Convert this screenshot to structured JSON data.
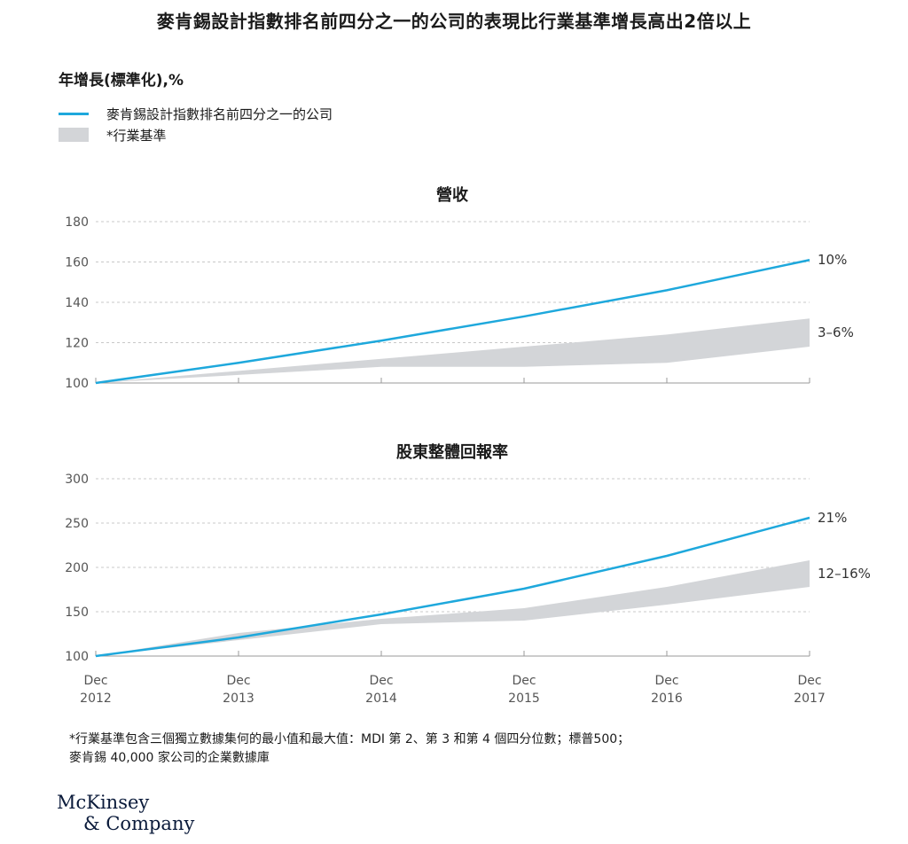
{
  "title": "麥肯錫設計指數排名前四分之一的公司的表現比行業基準增長高出2倍以上",
  "unit_label": "年增長(標準化),%",
  "legend": [
    {
      "name": "麥肯錫設計指數排名前四分之一的公司",
      "kind": "line"
    },
    {
      "name": "*行業基準",
      "kind": "band"
    }
  ],
  "colors": {
    "line": "#1ea8dc",
    "band": "#d3d5d8",
    "axis": "#9a9a9a",
    "grid": "#c8c8c8",
    "text": "#555555"
  },
  "chart_data": [
    {
      "type": "line",
      "title": "營收",
      "x": [
        "Dec\n2012",
        "Dec\n2013",
        "Dec\n2014",
        "Dec\n2015",
        "Dec\n2016",
        "Dec\n2017"
      ],
      "ylim": [
        100,
        180
      ],
      "yticks": [
        100,
        120,
        140,
        160,
        180
      ],
      "grid": true,
      "series": [
        {
          "name": "麥肯錫設計指數排名前四分之一的公司",
          "values": [
            100,
            110,
            121,
            133,
            146,
            161
          ]
        },
        {
          "name": "*行業基準 (上限)",
          "values": [
            100,
            106,
            112,
            118,
            124,
            132
          ]
        },
        {
          "name": "*行業基準 (下限)",
          "values": [
            100,
            104,
            108,
            108,
            110,
            118
          ]
        }
      ],
      "annotations": {
        "line_end": "10%",
        "band_end": "3–6%"
      }
    },
    {
      "type": "line",
      "title": "股東整體回報率",
      "x": [
        "Dec\n2012",
        "Dec\n2013",
        "Dec\n2014",
        "Dec\n2015",
        "Dec\n2016",
        "Dec\n2017"
      ],
      "ylim": [
        100,
        300
      ],
      "yticks": [
        100,
        150,
        200,
        250,
        300
      ],
      "grid": true,
      "series": [
        {
          "name": "麥肯錫設計指數排名前四分之一的公司",
          "values": [
            100,
            121,
            147,
            176,
            213,
            256
          ]
        },
        {
          "name": "*行業基準 (上限)",
          "values": [
            100,
            126,
            142,
            154,
            178,
            208
          ]
        },
        {
          "name": "*行業基準 (下限)",
          "values": [
            100,
            118,
            136,
            140,
            158,
            178
          ]
        }
      ],
      "annotations": {
        "line_end": "21%",
        "band_end": "12–16%"
      }
    }
  ],
  "x_axis_ticks": [
    {
      "month": "Dec",
      "year": "2012"
    },
    {
      "month": "Dec",
      "year": "2013"
    },
    {
      "month": "Dec",
      "year": "2014"
    },
    {
      "month": "Dec",
      "year": "2015"
    },
    {
      "month": "Dec",
      "year": "2016"
    },
    {
      "month": "Dec",
      "year": "2017"
    }
  ],
  "footnote": {
    "line1": "*行業基準包含三個獨立數據集何的最小值和最大值：MDI 第 2、第 3 和第 4 個四分位數；標普500；",
    "line2": "麥肯錫 40,000 家公司的企業數據庫"
  },
  "logo": {
    "line1": "McKinsey",
    "line2": "& Company"
  }
}
